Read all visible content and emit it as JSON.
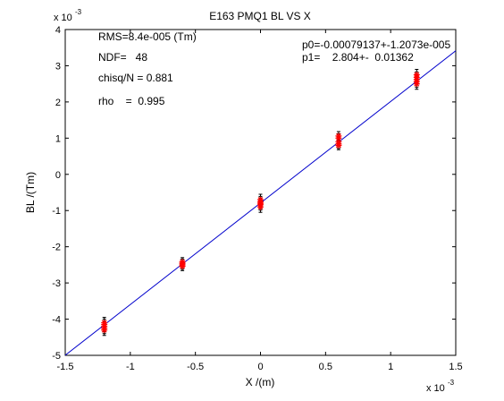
{
  "chart_data": {
    "type": "scatter",
    "title": "E163 PMQ1 BL VS X",
    "xlabel": "X /(m)",
    "ylabel": "BL /(Tm)",
    "x_exponent_label": "x 10",
    "x_exponent": "-3",
    "y_exponent_label": "x 10",
    "y_exponent": "-3",
    "xlim": [
      -1.5,
      1.5
    ],
    "ylim": [
      -5,
      4
    ],
    "xticks": [
      -1.5,
      -1,
      -0.5,
      0,
      0.5,
      1,
      1.5
    ],
    "xtick_labels": [
      "-1.5",
      "-1",
      "-0.5",
      "0",
      "0.5",
      "1",
      "1.5"
    ],
    "yticks": [
      -5,
      -4,
      -3,
      -2,
      -1,
      0,
      1,
      2,
      3,
      4
    ],
    "ytick_labels": [
      "-5",
      "-4",
      "-3",
      "-2",
      "-1",
      "0",
      "1",
      "2",
      "3",
      "4"
    ],
    "grid": false,
    "fit_line": {
      "slope": 2.804,
      "intercept": -0.79137,
      "color": "#0000cc"
    },
    "series": [
      {
        "marker": "*",
        "color": "#ff0000",
        "errorbar_color": "#000000",
        "x": [
          -1.2,
          -1.2,
          -1.2,
          -1.2,
          -1.2,
          -0.6,
          -0.6,
          -0.6,
          -0.6,
          0,
          0,
          0,
          0,
          0,
          0.6,
          0.6,
          0.6,
          0.6,
          0.6,
          1.2,
          1.2,
          1.2,
          1.2,
          1.2
        ],
        "y": [
          -4.1,
          -4.15,
          -4.2,
          -4.25,
          -4.3,
          -2.42,
          -2.46,
          -2.5,
          -2.54,
          -0.7,
          -0.76,
          -0.8,
          -0.84,
          -0.9,
          0.8,
          0.84,
          0.9,
          1.0,
          1.06,
          2.5,
          2.56,
          2.62,
          2.68,
          2.75
        ],
        "yerr": [
          0.15,
          0.15,
          0.15,
          0.15,
          0.15,
          0.12,
          0.12,
          0.12,
          0.12,
          0.15,
          0.15,
          0.15,
          0.15,
          0.15,
          0.12,
          0.12,
          0.12,
          0.12,
          0.12,
          0.15,
          0.15,
          0.15,
          0.15,
          0.15
        ]
      }
    ],
    "annotations": {
      "rms": "RMS=8.4e-005 (Tm)",
      "ndf": "NDF=   48",
      "chisq": "chisq/N = 0.881",
      "rho": "rho    =  0.995",
      "p0": "p0=-0.00079137+-1.2073e-005",
      "p1": "p1=    2.804+-  0.01362"
    }
  }
}
